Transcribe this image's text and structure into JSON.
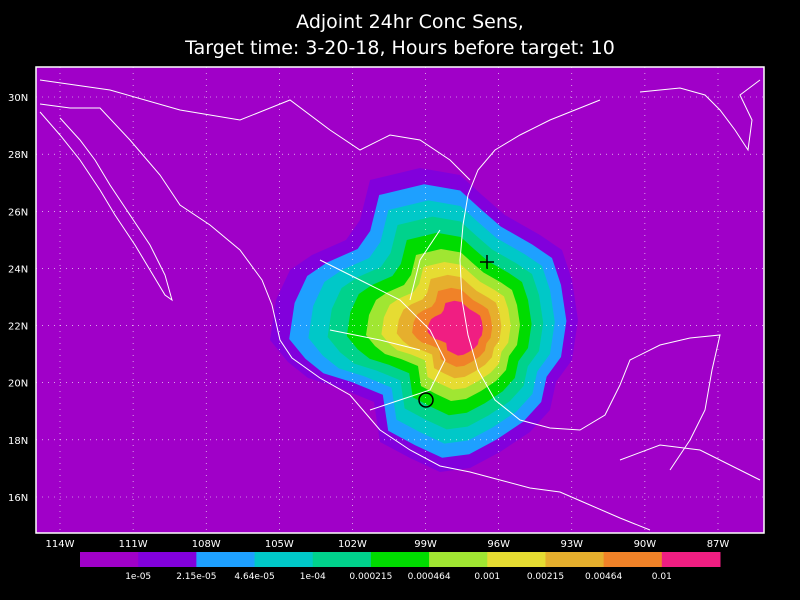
{
  "title": {
    "line1": "Adjoint 24hr Conc Sens,",
    "line2": "Target time: 3-20-18, Hours before target: 10"
  },
  "map": {
    "background": "#a000c8",
    "lat_labels": [
      "30N",
      "28N",
      "26N",
      "24N",
      "22N",
      "20N",
      "18N",
      "16N"
    ],
    "lon_labels": [
      "114W",
      "111W",
      "108W",
      "105W",
      "102W",
      "99W",
      "96W",
      "93W",
      "90W",
      "87W"
    ]
  },
  "colorbar": {
    "colors": [
      "#a000c8",
      "#8200dc",
      "#1ea0ff",
      "#00c8c8",
      "#00d28c",
      "#00dc00",
      "#a0e632",
      "#e6dc32",
      "#e6af2d",
      "#f08228",
      "#f01e82"
    ],
    "labels": [
      "1e-05",
      "2.15e-05",
      "4.64e-05",
      "1e-04",
      "0.000215",
      "0.000464",
      "0.001",
      "0.00215",
      "0.00464",
      "0.01"
    ]
  }
}
